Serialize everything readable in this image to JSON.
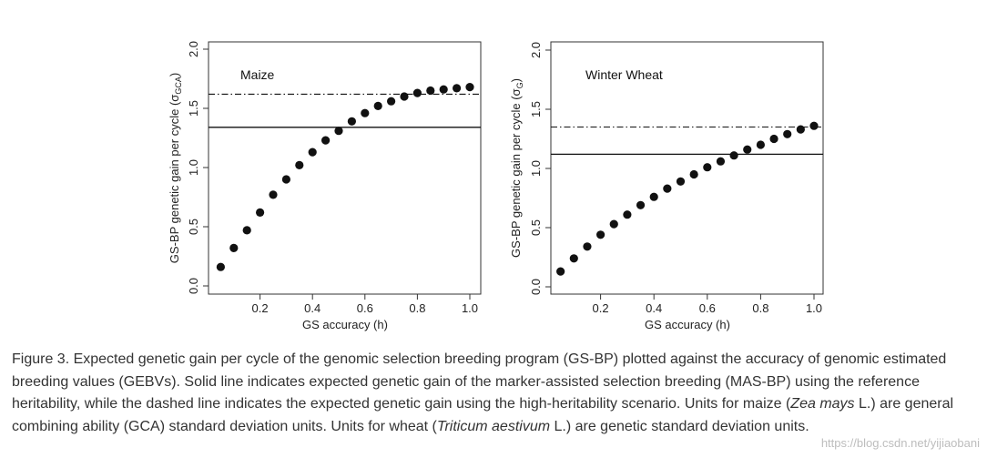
{
  "chart_data": [
    {
      "type": "scatter",
      "title": "Maize",
      "xlabel": "GS accuracy (h)",
      "ylabel_main": "GS-BP genetic gain per cycle (σ",
      "ylabel_sub": "GCA",
      "ylabel_end": ")",
      "xlim": [
        0.05,
        1.0
      ],
      "ylim": [
        0.0,
        2.0
      ],
      "x_ticks": [
        0.2,
        0.4,
        0.6,
        0.8,
        1.0
      ],
      "x_tick_labels": [
        "0.2",
        "0.4",
        "0.6",
        "0.8",
        "1.0"
      ],
      "y_ticks": [
        0.0,
        0.5,
        1.0,
        1.5,
        2.0
      ],
      "y_tick_labels": [
        "0.0",
        "0.5",
        "1.0",
        "1.5",
        "2.0"
      ],
      "series": [
        {
          "name": "GS-BP",
          "x": [
            0.05,
            0.1,
            0.15,
            0.2,
            0.25,
            0.3,
            0.35,
            0.4,
            0.45,
            0.5,
            0.55,
            0.6,
            0.65,
            0.7,
            0.75,
            0.8,
            0.85,
            0.9,
            0.95,
            1.0
          ],
          "y": [
            0.16,
            0.32,
            0.47,
            0.62,
            0.77,
            0.9,
            1.02,
            1.13,
            1.23,
            1.31,
            1.39,
            1.46,
            1.52,
            1.56,
            1.6,
            1.63,
            1.65,
            1.66,
            1.67,
            1.68
          ]
        }
      ],
      "reference_lines": [
        {
          "name": "MAS-BP reference heritability",
          "style": "solid",
          "y": 1.34
        },
        {
          "name": "MAS-BP high-heritability scenario",
          "style": "dashdot",
          "y": 1.62
        }
      ],
      "grid": false
    },
    {
      "type": "scatter",
      "title": "Winter Wheat",
      "xlabel": "GS accuracy (h)",
      "ylabel_main": "GS-BP genetic gain per cycle (σ",
      "ylabel_sub": "G",
      "ylabel_end": ")",
      "xlim": [
        0.05,
        1.0
      ],
      "ylim": [
        0.0,
        2.0
      ],
      "x_ticks": [
        0.2,
        0.4,
        0.6,
        0.8,
        1.0
      ],
      "x_tick_labels": [
        "0.2",
        "0.4",
        "0.6",
        "0.8",
        "1.0"
      ],
      "y_ticks": [
        0.0,
        0.5,
        1.0,
        1.5,
        2.0
      ],
      "y_tick_labels": [
        "0.0",
        "0.5",
        "1.0",
        "1.5",
        "2.0"
      ],
      "series": [
        {
          "name": "GS-BP",
          "x": [
            0.05,
            0.1,
            0.15,
            0.2,
            0.25,
            0.3,
            0.35,
            0.4,
            0.45,
            0.5,
            0.55,
            0.6,
            0.65,
            0.7,
            0.75,
            0.8,
            0.85,
            0.9,
            0.95,
            1.0
          ],
          "y": [
            0.13,
            0.24,
            0.34,
            0.44,
            0.53,
            0.61,
            0.69,
            0.76,
            0.83,
            0.89,
            0.95,
            1.01,
            1.06,
            1.11,
            1.16,
            1.2,
            1.25,
            1.29,
            1.33,
            1.36
          ]
        }
      ],
      "reference_lines": [
        {
          "name": "MAS-BP reference heritability",
          "style": "solid",
          "y": 1.12
        },
        {
          "name": "MAS-BP high-heritability scenario",
          "style": "dashdot",
          "y": 1.35
        }
      ],
      "grid": false
    }
  ],
  "caption": {
    "p1": "Figure 3. Expected genetic gain per cycle of the genomic selection breeding program (GS-BP) plotted against the accuracy of genomic estimated breeding values (GEBVs). Solid line indicates expected genetic gain of the marker-assisted selection breeding (MAS-BP) using the reference heritability, while the dashed line indicates the expected genetic gain using the high-heritability scenario. Units for maize (",
    "i1": "Zea mays",
    "p2": " L.) are general combining ability (GCA) standard deviation units. Units for wheat (",
    "i2": "Triticum aestivum",
    "p3": " L.) are genetic standard deviation units."
  },
  "watermark": "https://blog.csdn.net/yijiaobani"
}
